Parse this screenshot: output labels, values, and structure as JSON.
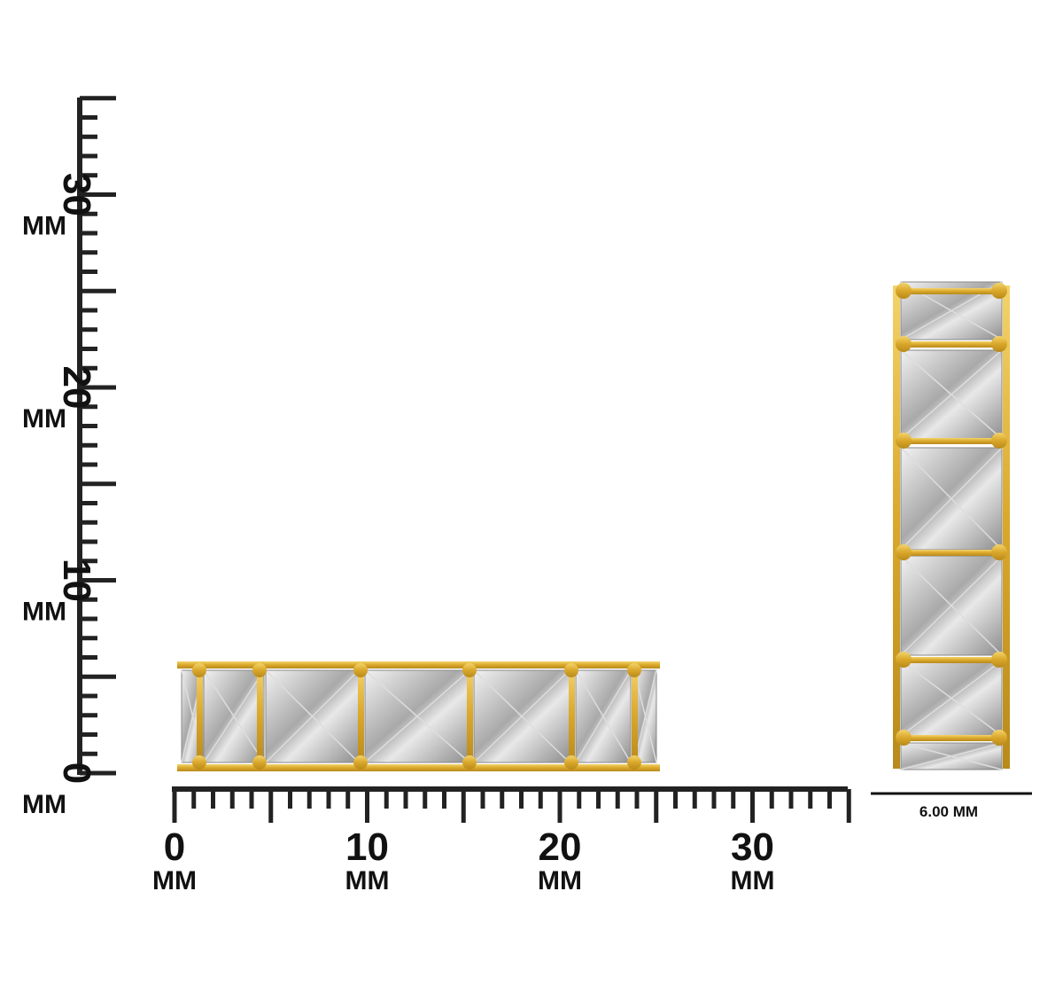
{
  "vertical_ruler": {
    "labels": [
      {
        "number": "0",
        "unit": "MM"
      },
      {
        "number": "10",
        "unit": "MM"
      },
      {
        "number": "20",
        "unit": "MM"
      },
      {
        "number": "30",
        "unit": "MM"
      }
    ]
  },
  "horizontal_ruler": {
    "labels": [
      {
        "number": "0",
        "unit": "MM"
      },
      {
        "number": "10",
        "unit": "MM"
      },
      {
        "number": "20",
        "unit": "MM"
      },
      {
        "number": "30",
        "unit": "MM"
      }
    ]
  },
  "width_label": "6.00 MM"
}
